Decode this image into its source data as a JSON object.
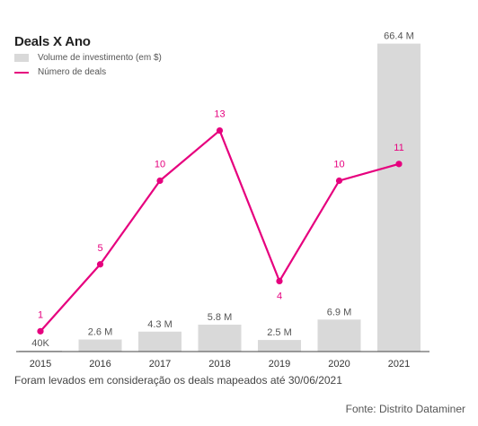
{
  "chart_data": {
    "type": "bar+line",
    "title": "Deals X Ano",
    "legend": [
      {
        "label": "Volume de investimento (em $)",
        "kind": "bar",
        "color": "#d9d9d9"
      },
      {
        "label": "Número de deals",
        "kind": "line",
        "color": "#e6007e"
      }
    ],
    "categories": [
      "2015",
      "2016",
      "2017",
      "2018",
      "2019",
      "2020",
      "2021"
    ],
    "series": [
      {
        "name": "Volume de investimento (em $)",
        "type": "bar",
        "values": [
          0.04,
          2.6,
          4.3,
          5.8,
          2.5,
          6.9,
          66.4
        ],
        "labels": [
          "40K",
          "2.6 M",
          "4.3 M",
          "5.8 M",
          "2.5 M",
          "6.9 M",
          "66.4 M"
        ]
      },
      {
        "name": "Número de deals",
        "type": "line",
        "values": [
          1,
          5,
          10,
          13,
          4,
          10,
          11
        ],
        "labels": [
          "1",
          "5",
          "10",
          "13",
          "4",
          "10",
          "11"
        ]
      }
    ],
    "bar_ylim": [
      0,
      70
    ],
    "line_ylim": [
      0,
      14.5
    ],
    "grid": false,
    "legend_position": "top-left"
  },
  "note": "Foram levados em consideração os deals mapeados até 30/06/2021",
  "source": "Fonte: Distrito Dataminer",
  "colors": {
    "bar": "#d9d9d9",
    "line": "#e6007e",
    "axis": "#444444"
  }
}
